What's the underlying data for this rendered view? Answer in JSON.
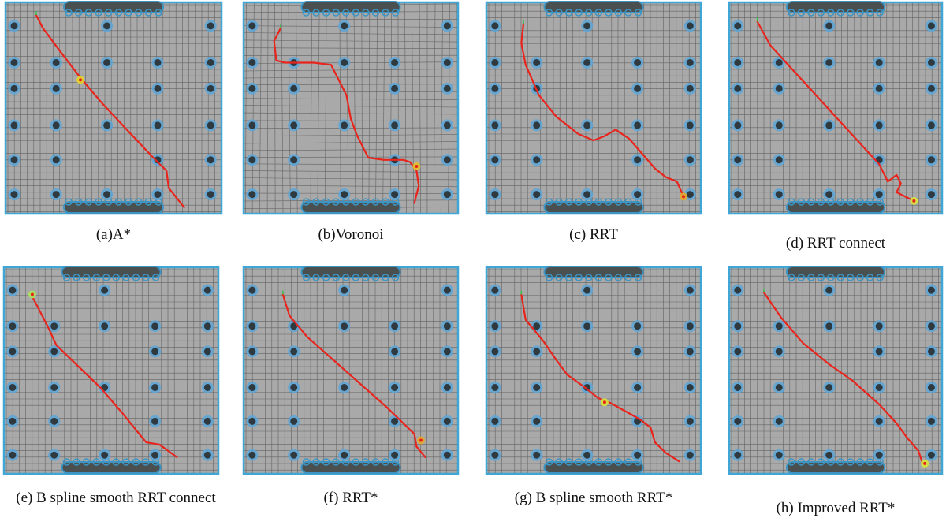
{
  "panels": [
    {
      "id": "a",
      "caption": "(a)A*",
      "path": [
        [
          0.15,
          0.07
        ],
        [
          0.18,
          0.13
        ],
        [
          0.26,
          0.24
        ],
        [
          0.35,
          0.36
        ],
        [
          0.45,
          0.48
        ],
        [
          0.56,
          0.6
        ],
        [
          0.68,
          0.73
        ],
        [
          0.74,
          0.79
        ],
        [
          0.75,
          0.87
        ],
        [
          0.82,
          0.96
        ]
      ],
      "goal": [
        0.35,
        0.37
      ],
      "goal_color": "#e6d52a"
    },
    {
      "id": "b",
      "caption": "(b)Voronoi",
      "path": [
        [
          0.18,
          0.13
        ],
        [
          0.15,
          0.19
        ],
        [
          0.16,
          0.28
        ],
        [
          0.2,
          0.29
        ],
        [
          0.33,
          0.29
        ],
        [
          0.41,
          0.3
        ],
        [
          0.45,
          0.38
        ],
        [
          0.48,
          0.44
        ],
        [
          0.5,
          0.55
        ],
        [
          0.53,
          0.63
        ],
        [
          0.58,
          0.73
        ],
        [
          0.65,
          0.74
        ],
        [
          0.74,
          0.74
        ],
        [
          0.77,
          0.75
        ],
        [
          0.8,
          0.79
        ],
        [
          0.81,
          0.86
        ],
        [
          0.79,
          0.94
        ]
      ],
      "goal": [
        0.8,
        0.77
      ],
      "goal_color": "#e6c22a"
    },
    {
      "id": "c",
      "caption": "(c) RRT",
      "path": [
        [
          0.18,
          0.11
        ],
        [
          0.17,
          0.2
        ],
        [
          0.19,
          0.3
        ],
        [
          0.25,
          0.44
        ],
        [
          0.33,
          0.54
        ],
        [
          0.43,
          0.62
        ],
        [
          0.5,
          0.65
        ],
        [
          0.55,
          0.63
        ],
        [
          0.6,
          0.6
        ],
        [
          0.66,
          0.64
        ],
        [
          0.72,
          0.71
        ],
        [
          0.78,
          0.78
        ],
        [
          0.83,
          0.82
        ],
        [
          0.88,
          0.84
        ],
        [
          0.91,
          0.91
        ]
      ],
      "goal": [
        0.91,
        0.91
      ],
      "goal_color": "#e6a82a"
    },
    {
      "id": "d",
      "caption": "(d) RRT connect",
      "path": [
        [
          0.14,
          0.1
        ],
        [
          0.2,
          0.21
        ],
        [
          0.3,
          0.32
        ],
        [
          0.4,
          0.43
        ],
        [
          0.5,
          0.54
        ],
        [
          0.6,
          0.65
        ],
        [
          0.7,
          0.76
        ],
        [
          0.74,
          0.84
        ],
        [
          0.78,
          0.81
        ],
        [
          0.8,
          0.85
        ],
        [
          0.78,
          0.89
        ],
        [
          0.86,
          0.93
        ]
      ],
      "goal": [
        0.86,
        0.93
      ],
      "goal_color": "#d8e63a"
    },
    {
      "id": "e",
      "caption": "(e) B spline smooth RRT connect",
      "path": [
        [
          0.14,
          0.15
        ],
        [
          0.17,
          0.21
        ],
        [
          0.21,
          0.29
        ],
        [
          0.25,
          0.38
        ],
        [
          0.33,
          0.46
        ],
        [
          0.45,
          0.58
        ],
        [
          0.55,
          0.7
        ],
        [
          0.62,
          0.79
        ],
        [
          0.66,
          0.84
        ],
        [
          0.72,
          0.85
        ],
        [
          0.8,
          0.91
        ]
      ],
      "goal": [
        0.14,
        0.14
      ],
      "goal_color": "#a8e65a"
    },
    {
      "id": "f",
      "caption": "(f) RRT*",
      "path": [
        [
          0.19,
          0.14
        ],
        [
          0.22,
          0.24
        ],
        [
          0.3,
          0.34
        ],
        [
          0.42,
          0.45
        ],
        [
          0.54,
          0.56
        ],
        [
          0.66,
          0.67
        ],
        [
          0.74,
          0.75
        ],
        [
          0.79,
          0.8
        ],
        [
          0.8,
          0.86
        ],
        [
          0.84,
          0.91
        ]
      ],
      "goal": [
        0.82,
        0.83
      ],
      "goal_color": "#e6a82a"
    },
    {
      "id": "g",
      "caption": "(g) B spline smooth RRT*",
      "path": [
        [
          0.17,
          0.14
        ],
        [
          0.19,
          0.26
        ],
        [
          0.27,
          0.36
        ],
        [
          0.33,
          0.45
        ],
        [
          0.38,
          0.52
        ],
        [
          0.46,
          0.58
        ],
        [
          0.52,
          0.63
        ],
        [
          0.57,
          0.65
        ],
        [
          0.64,
          0.69
        ],
        [
          0.71,
          0.73
        ],
        [
          0.76,
          0.77
        ],
        [
          0.78,
          0.84
        ],
        [
          0.83,
          0.89
        ],
        [
          0.89,
          0.93
        ]
      ],
      "goal": [
        0.55,
        0.65
      ],
      "goal_color": "#d8e63a"
    },
    {
      "id": "h",
      "caption": "(h) Improved RRT*",
      "path": [
        [
          0.17,
          0.13
        ],
        [
          0.25,
          0.25
        ],
        [
          0.35,
          0.37
        ],
        [
          0.47,
          0.47
        ],
        [
          0.58,
          0.55
        ],
        [
          0.7,
          0.66
        ],
        [
          0.78,
          0.75
        ],
        [
          0.83,
          0.82
        ],
        [
          0.88,
          0.88
        ],
        [
          0.9,
          0.94
        ]
      ],
      "goal": [
        0.91,
        0.94
      ],
      "goal_color": "#d8e63a"
    }
  ],
  "colors": {
    "floor": "#a9a9a9",
    "grid_line": "#2a2a2a",
    "border": "#3fa6d6",
    "path": "#e8241c",
    "obstacle_dark": "#4a5050",
    "obstacle_ring": "#3c95c4",
    "caption_text": "#111111"
  }
}
